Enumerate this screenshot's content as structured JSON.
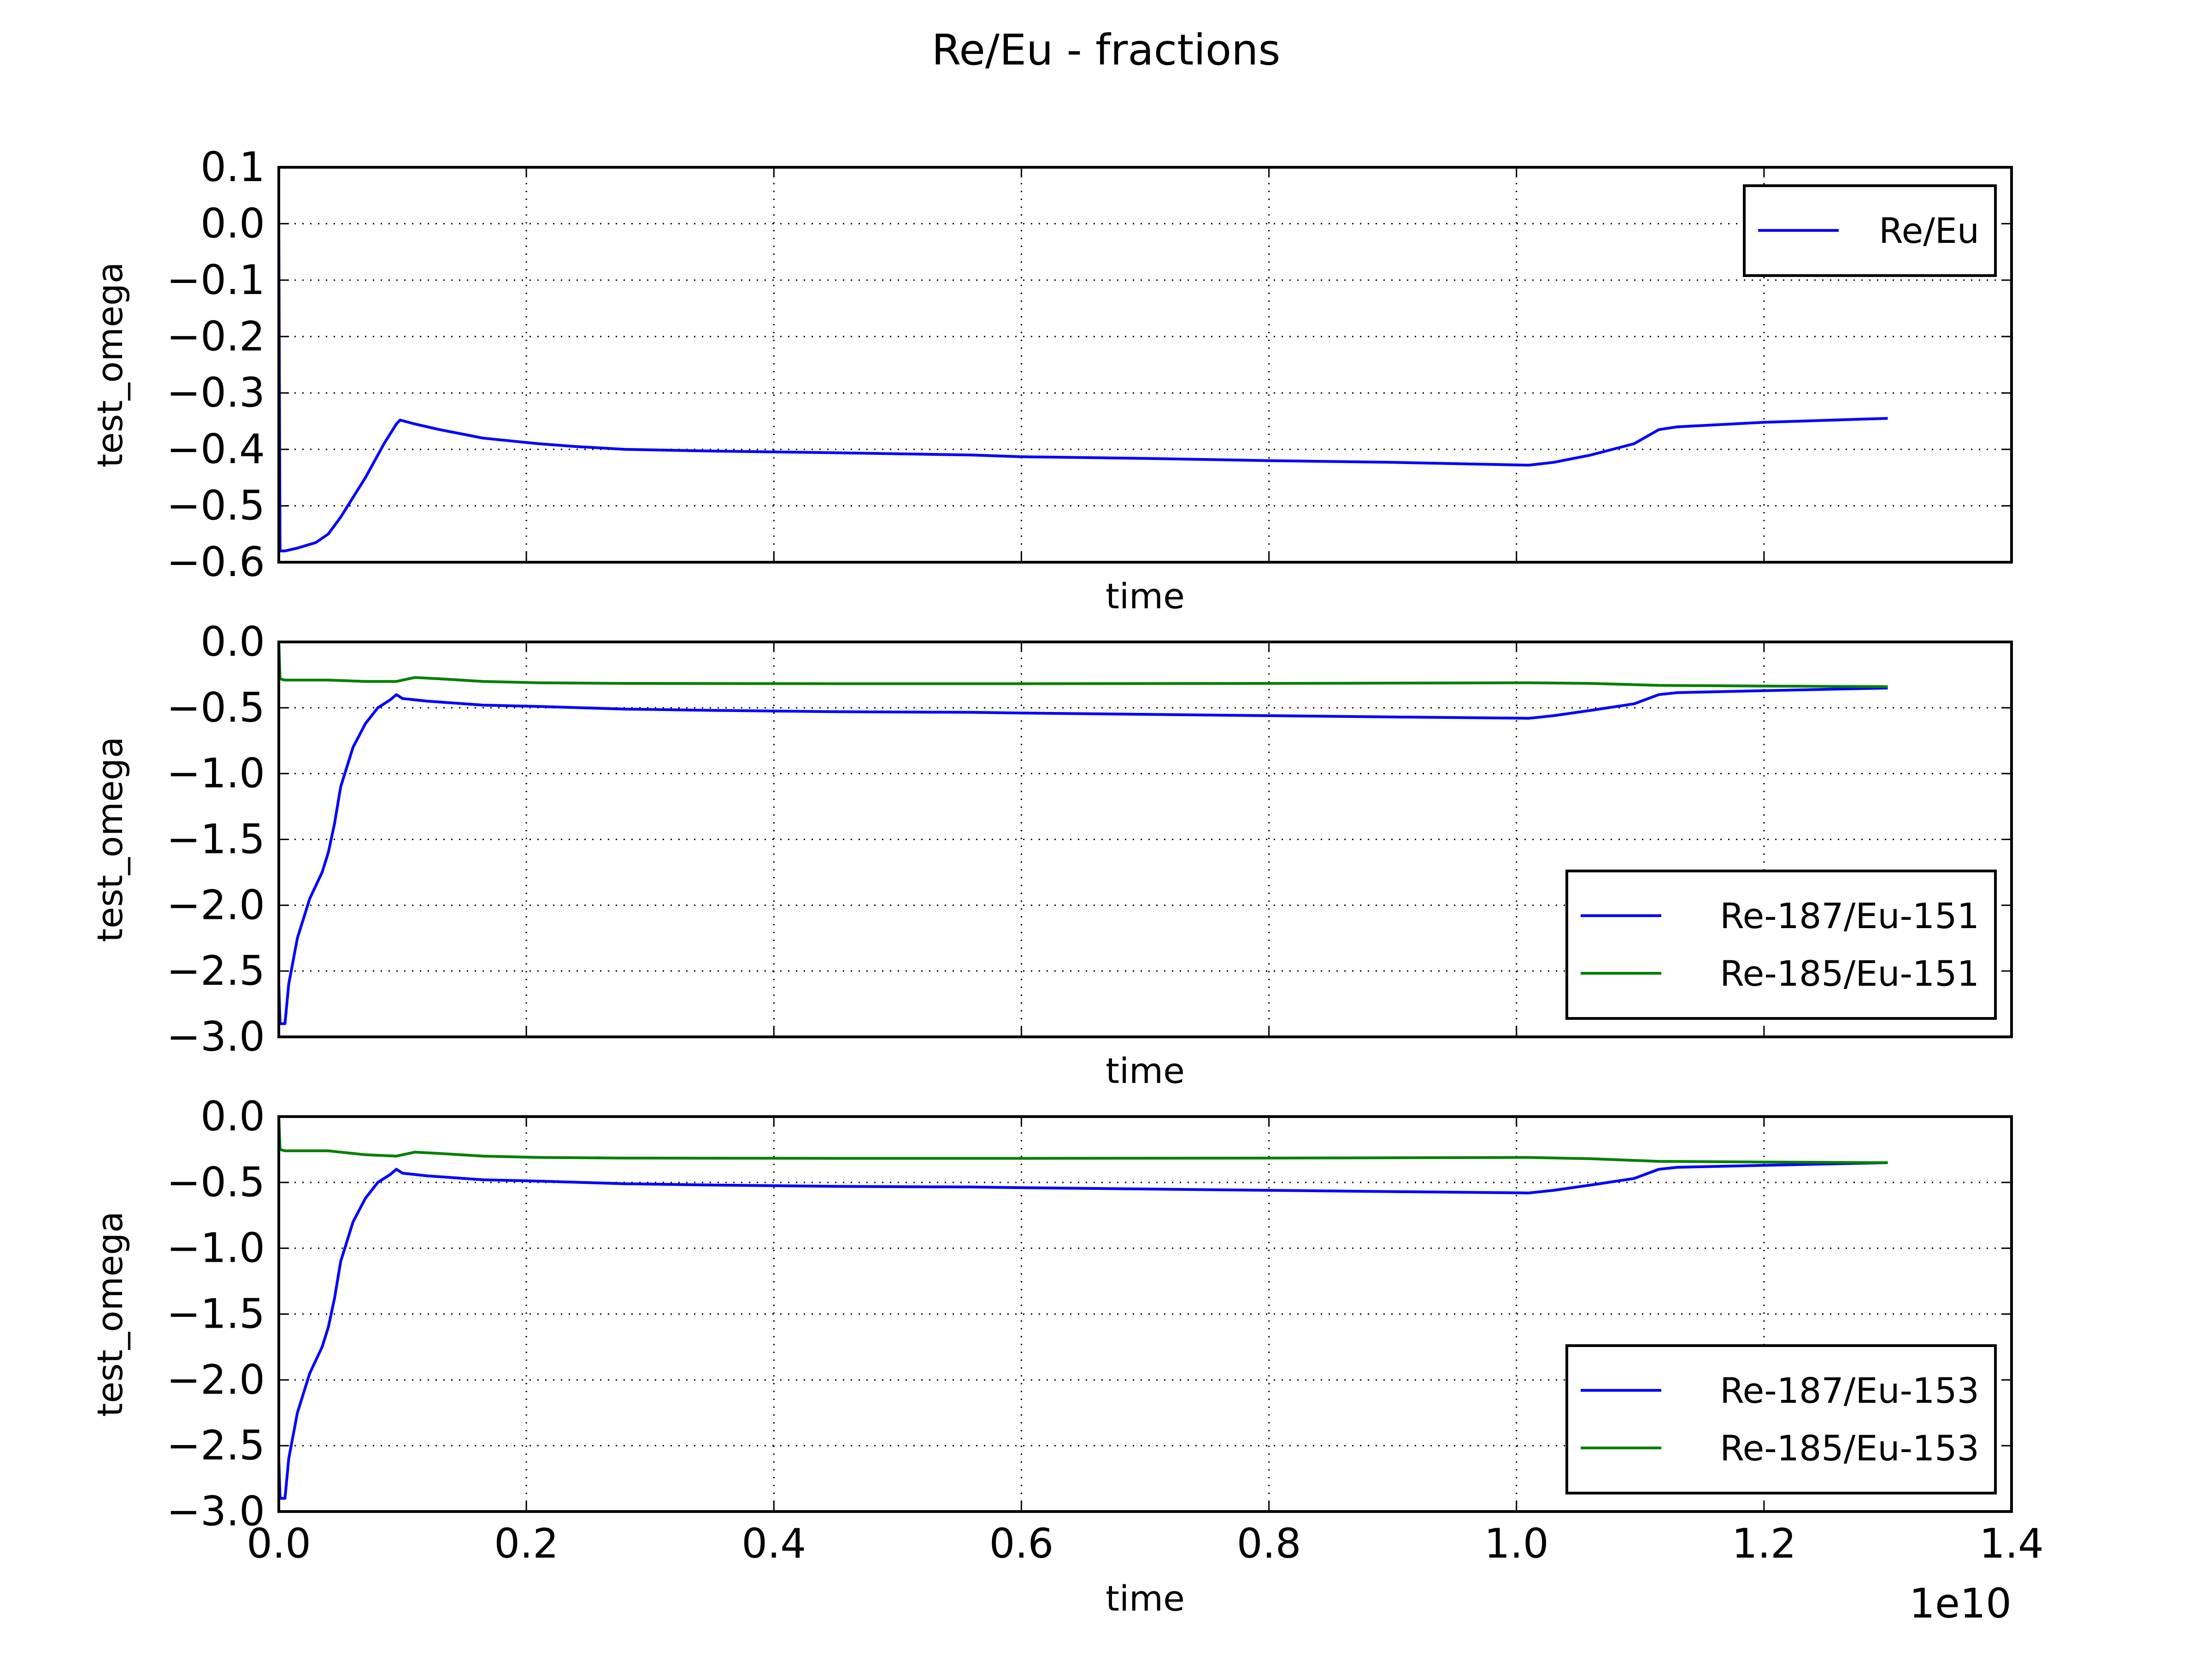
{
  "figure_title": "Re/Eu - fractions",
  "x_offset_label": "1e10",
  "colors": {
    "blue": "#0000ff",
    "green": "#008000",
    "grid": "#000000"
  },
  "chart_data": [
    {
      "type": "line",
      "xlabel": "time",
      "ylabel": "test_omega",
      "xlim": [
        0,
        14000000000
      ],
      "ylim": [
        -0.6,
        0.1
      ],
      "yticks": [
        "0.1",
        "0.0",
        "−0.1",
        "−0.2",
        "−0.3",
        "−0.4",
        "−0.5",
        "−0.6"
      ],
      "ytick_values": [
        0.1,
        0.0,
        -0.1,
        -0.2,
        -0.3,
        -0.4,
        -0.5,
        -0.6
      ],
      "grid": true,
      "legend_position": "top-right",
      "series": [
        {
          "name": "Re/Eu",
          "color": "#0000ff",
          "x": [
            0,
            10000000,
            50000000,
            150000000,
            300000000,
            400000000,
            500000000,
            700000000,
            850000000,
            950000000,
            980000000,
            1100000000,
            1200000000,
            1300000000,
            1650000000,
            2100000000,
            2400000000,
            2800000000,
            3500000000,
            4500000000,
            5600000000,
            6000000000,
            7000000000,
            8000000000,
            9000000000,
            10100000000,
            10300000000,
            10600000000,
            10950000000,
            11150000000,
            11300000000,
            12000000000,
            13000000000
          ],
          "y": [
            0.0,
            -0.58,
            -0.58,
            -0.575,
            -0.565,
            -0.55,
            -0.52,
            -0.45,
            -0.39,
            -0.355,
            -0.348,
            -0.355,
            -0.36,
            -0.365,
            -0.38,
            -0.39,
            -0.395,
            -0.4,
            -0.403,
            -0.406,
            -0.41,
            -0.413,
            -0.416,
            -0.42,
            -0.423,
            -0.428,
            -0.423,
            -0.41,
            -0.39,
            -0.365,
            -0.36,
            -0.352,
            -0.345
          ]
        }
      ]
    },
    {
      "type": "line",
      "xlabel": "time",
      "ylabel": "test_omega",
      "xlim": [
        0,
        14000000000
      ],
      "ylim": [
        -3.0,
        0.0
      ],
      "yticks": [
        "0.0",
        "−0.5",
        "−1.0",
        "−1.5",
        "−2.0",
        "−2.5",
        "−3.0"
      ],
      "ytick_values": [
        0.0,
        -0.5,
        -1.0,
        -1.5,
        -2.0,
        -2.5,
        -3.0
      ],
      "grid": true,
      "legend_position": "lower-right",
      "series": [
        {
          "name": "Re-187/Eu-151",
          "color": "#0000ff",
          "x": [
            0,
            10000000,
            50000000,
            80000000,
            150000000,
            250000000,
            350000000,
            400000000,
            450000000,
            500000000,
            600000000,
            700000000,
            800000000,
            900000000,
            950000000,
            1000000000,
            1200000000,
            1650000000,
            2100000000,
            2800000000,
            3500000000,
            4500000000,
            5600000000,
            6000000000,
            7000000000,
            8000000000,
            9000000000,
            10100000000,
            10300000000,
            10600000000,
            10950000000,
            11150000000,
            11300000000,
            12000000000,
            13000000000
          ],
          "y": [
            -2.6,
            -2.9,
            -2.9,
            -2.6,
            -2.25,
            -1.95,
            -1.75,
            -1.6,
            -1.38,
            -1.1,
            -0.8,
            -0.62,
            -0.5,
            -0.44,
            -0.4,
            -0.43,
            -0.45,
            -0.48,
            -0.49,
            -0.51,
            -0.52,
            -0.53,
            -0.535,
            -0.54,
            -0.55,
            -0.56,
            -0.57,
            -0.58,
            -0.56,
            -0.52,
            -0.47,
            -0.4,
            -0.385,
            -0.37,
            -0.35
          ]
        },
        {
          "name": "Re-185/Eu-151",
          "color": "#008000",
          "x": [
            0,
            10000000,
            50000000,
            400000000,
            700000000,
            950000000,
            1100000000,
            1300000000,
            1650000000,
            2100000000,
            2800000000,
            4500000000,
            6000000000,
            8000000000,
            10100000000,
            10600000000,
            11150000000,
            12000000000,
            13000000000
          ],
          "y": [
            0.0,
            -0.28,
            -0.29,
            -0.29,
            -0.3,
            -0.3,
            -0.27,
            -0.28,
            -0.3,
            -0.31,
            -0.315,
            -0.317,
            -0.317,
            -0.315,
            -0.31,
            -0.315,
            -0.33,
            -0.335,
            -0.34
          ]
        }
      ]
    },
    {
      "type": "line",
      "xlabel": "time",
      "ylabel": "test_omega",
      "xlim": [
        0,
        14000000000
      ],
      "ylim": [
        -3.0,
        0.0
      ],
      "xticks": [
        "0.0",
        "0.2",
        "0.4",
        "0.6",
        "0.8",
        "1.0",
        "1.2",
        "1.4"
      ],
      "xtick_values": [
        0,
        2000000000,
        4000000000,
        6000000000,
        8000000000,
        10000000000,
        12000000000,
        14000000000
      ],
      "yticks": [
        "0.0",
        "−0.5",
        "−1.0",
        "−1.5",
        "−2.0",
        "−2.5",
        "−3.0"
      ],
      "ytick_values": [
        0.0,
        -0.5,
        -1.0,
        -1.5,
        -2.0,
        -2.5,
        -3.0
      ],
      "grid": true,
      "legend_position": "lower-right",
      "series": [
        {
          "name": "Re-187/Eu-153",
          "color": "#0000ff",
          "x": [
            0,
            10000000,
            50000000,
            80000000,
            150000000,
            250000000,
            350000000,
            400000000,
            450000000,
            500000000,
            600000000,
            700000000,
            800000000,
            900000000,
            950000000,
            1000000000,
            1200000000,
            1650000000,
            2100000000,
            2800000000,
            3500000000,
            4500000000,
            5600000000,
            6000000000,
            7000000000,
            8000000000,
            9000000000,
            10100000000,
            10300000000,
            10600000000,
            10950000000,
            11150000000,
            11300000000,
            12000000000,
            13000000000
          ],
          "y": [
            -2.6,
            -2.9,
            -2.9,
            -2.6,
            -2.25,
            -1.95,
            -1.75,
            -1.6,
            -1.38,
            -1.1,
            -0.8,
            -0.62,
            -0.5,
            -0.44,
            -0.4,
            -0.43,
            -0.45,
            -0.48,
            -0.49,
            -0.51,
            -0.52,
            -0.53,
            -0.535,
            -0.54,
            -0.55,
            -0.56,
            -0.57,
            -0.58,
            -0.56,
            -0.52,
            -0.47,
            -0.4,
            -0.385,
            -0.37,
            -0.35
          ]
        },
        {
          "name": "Re-185/Eu-153",
          "color": "#008000",
          "x": [
            0,
            10000000,
            50000000,
            400000000,
            700000000,
            950000000,
            1100000000,
            1300000000,
            1650000000,
            2100000000,
            2800000000,
            4500000000,
            6000000000,
            8000000000,
            10100000000,
            10600000000,
            11150000000,
            12000000000,
            13000000000
          ],
          "y": [
            0.0,
            -0.25,
            -0.26,
            -0.26,
            -0.29,
            -0.3,
            -0.27,
            -0.28,
            -0.3,
            -0.31,
            -0.315,
            -0.317,
            -0.317,
            -0.315,
            -0.31,
            -0.32,
            -0.34,
            -0.345,
            -0.35
          ]
        }
      ]
    }
  ]
}
